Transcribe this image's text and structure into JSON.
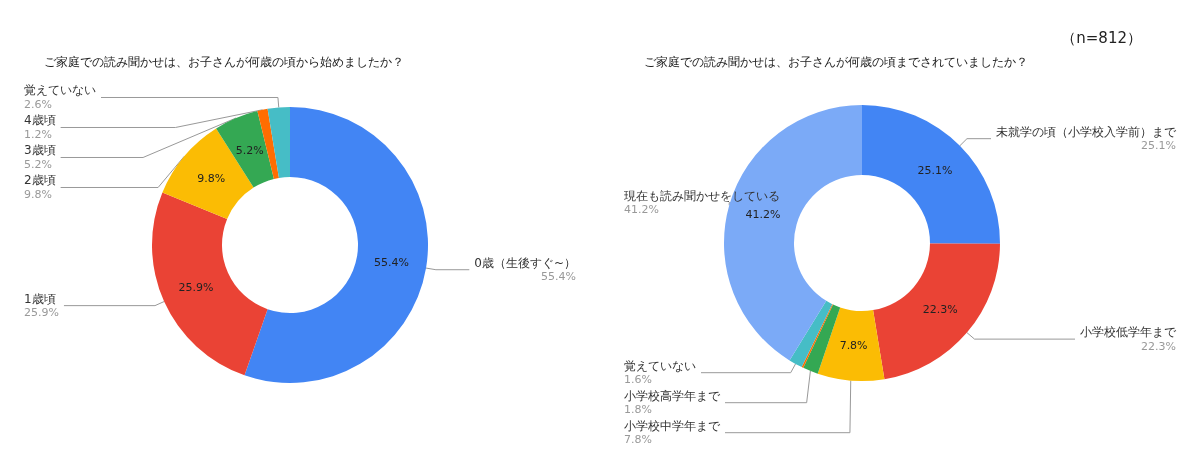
{
  "chart_data": [
    {
      "type": "donut",
      "title": "ご家庭での読み聞かせは、お子さんが何歳の頃から始めましたか？",
      "categories": [
        "0歳（生後すぐ~）",
        "1歳頃",
        "2歳頃",
        "3歳頃",
        "4歳頃",
        "覚えていない"
      ],
      "values": [
        55.4,
        25.9,
        9.8,
        5.2,
        1.2,
        2.6
      ],
      "colors": [
        "#4285f4",
        "#ea4335",
        "#fbbc04",
        "#34a853",
        "#ff6d01",
        "#46bdc6"
      ],
      "value_labels": [
        "55.4%",
        "25.9%",
        "9.8%",
        "5.2%",
        "1.2%",
        "2.6%"
      ],
      "legend": false
    },
    {
      "type": "donut",
      "title": "ご家庭での読み聞かせは、お子さんが何歳の頃までされていましたか？",
      "categories": [
        "未就学の頃（小学校入学前）まで",
        "小学校低学年まで",
        "小学校中学年まで",
        "小学校高学年まで",
        null,
        "覚えていない",
        "現在も読み聞かせをしている"
      ],
      "values": [
        25.1,
        22.3,
        7.8,
        1.8,
        0.2,
        1.6,
        41.2
      ],
      "colors": [
        "#4285f4",
        "#ea4335",
        "#fbbc04",
        "#34a853",
        "#ff6d01",
        "#46bdc6",
        "#7baaf7"
      ],
      "value_labels": [
        "25.1%",
        "22.3%",
        "7.8%",
        "1.8%",
        null,
        "1.6%",
        "41.2%"
      ],
      "legend": false,
      "annotations": [
        "（n=812）"
      ]
    }
  ]
}
